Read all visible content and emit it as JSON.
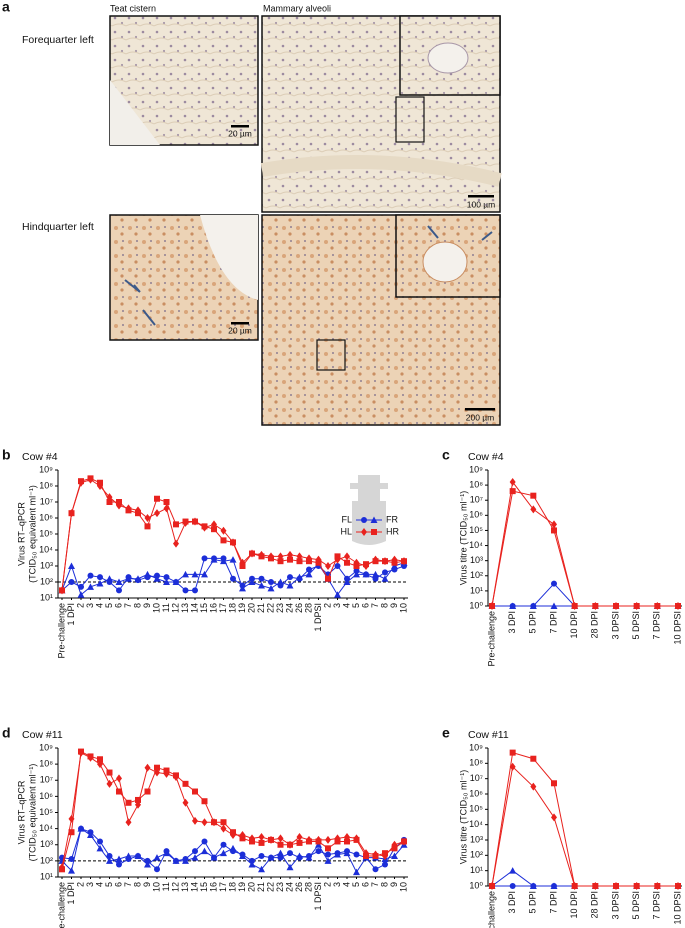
{
  "panel_a": {
    "letter": "a",
    "col1": "Teat cistern",
    "col2": "Mammary alveoli",
    "row1": "Forequarter left",
    "row2": "Hindquarter left",
    "scale_bars": [
      "20 µm",
      "100 µm",
      "20 µm",
      "200 µm"
    ]
  },
  "chart_data": [
    {
      "type": "line",
      "panel": "b",
      "title": "Cow #4",
      "ylabel": [
        "Virus RT–qPCR",
        "(TCID₅₀ equivalent ml⁻¹)"
      ],
      "log_y": true,
      "legend": "upper right",
      "threshold": 100,
      "categories": [
        "Pre-challenge",
        "1 DPI",
        "2",
        "3",
        "4",
        "5",
        "6",
        "7",
        "8",
        "9",
        "10",
        "11",
        "12",
        "13",
        "14",
        "15",
        "16",
        "17",
        "18",
        "19",
        "20",
        "21",
        "22",
        "23",
        "24",
        "26",
        "28",
        "1 DPSI",
        "2",
        "3",
        "4",
        "5",
        "6",
        "7",
        "8",
        "9",
        "10"
      ],
      "ylim": [
        10,
        1000000000.0
      ],
      "yticks": [
        {
          "value": 10,
          "label": "10¹"
        },
        {
          "value": 100,
          "label": "10²"
        },
        {
          "value": 1000.0,
          "label": "10³"
        },
        {
          "value": 10000.0,
          "label": "10⁴"
        },
        {
          "value": 100000.0,
          "label": "10⁵"
        },
        {
          "value": 1000000.0,
          "label": "10⁶"
        },
        {
          "value": 10000000.0,
          "label": "10⁷"
        },
        {
          "value": 100000000.0,
          "label": "10⁸"
        },
        {
          "value": 1000000000.0,
          "label": "10⁹"
        }
      ],
      "series": [
        {
          "name": "FL",
          "color": "#1c2ed8",
          "marker": "circle",
          "values": [
            30.0,
            100.0,
            50.0,
            250.0,
            200.0,
            100.0,
            30.0,
            200.0,
            130.0,
            200.0,
            250.0,
            200.0,
            100.0,
            30.0,
            30.0,
            3000.0,
            3000.0,
            3000.0,
            160.0,
            60.0,
            160.0,
            160.0,
            100.0,
            60.0,
            200.0,
            160.0,
            600.0,
            1000.0,
            300.0,
            1000.0,
            160.0,
            500.0,
            300.0,
            160.0,
            400.0,
            600.0,
            1000.0
          ]
        },
        {
          "name": "FR",
          "color": "#1c2ed8",
          "marker": "triangle",
          "values": [
            30.0,
            1000.0,
            16.0,
            50.0,
            80.0,
            160.0,
            100.0,
            160.0,
            160.0,
            300.0,
            160.0,
            100.0,
            100.0,
            300.0,
            300.0,
            300.0,
            2500.0,
            2000.0,
            2500.0,
            40.0,
            100.0,
            60.0,
            40.0,
            100.0,
            60.0,
            200.0,
            300.0,
            1300.0,
            160.0,
            16.0,
            100.0,
            300.0,
            300.0,
            300.0,
            160.0,
            1000.0,
            1600.0
          ]
        },
        {
          "name": "HL",
          "color": "#e8221e",
          "marker": "diamond",
          "values": [
            30.0,
            2000000.0,
            160000000.0,
            250000000.0,
            100000000.0,
            20000000.0,
            6000000.0,
            4000000.0,
            3000000.0,
            1000000.0,
            2000000.0,
            4000000.0,
            25000.0,
            500000.0,
            600000.0,
            250000.0,
            400000.0,
            160000.0,
            30000.0,
            1600.0,
            6000.0,
            5000.0,
            4000.0,
            4000.0,
            5000.0,
            4000.0,
            3000.0,
            2500.0,
            1000.0,
            2500.0,
            4000.0,
            1600.0,
            1000.0,
            2500.0,
            2000.0,
            2500.0,
            2000.0
          ]
        },
        {
          "name": "HR",
          "color": "#e8221e",
          "marker": "square",
          "values": [
            30.0,
            2000000.0,
            200000000.0,
            300000000.0,
            160000000.0,
            10000000.0,
            10000000.0,
            3000000.0,
            2000000.0,
            300000.0,
            16000000.0,
            10000000.0,
            400000.0,
            600000.0,
            600000.0,
            300000.0,
            200000.0,
            40000.0,
            30000.0,
            1000.0,
            6000.0,
            4000.0,
            3000.0,
            2000.0,
            2500.0,
            2000.0,
            2000.0,
            1600.0,
            160.0,
            4000.0,
            1600.0,
            1000.0,
            1300.0,
            2000.0,
            2000.0,
            1600.0,
            2000.0
          ]
        }
      ]
    },
    {
      "type": "line",
      "panel": "c",
      "title": "Cow #4",
      "ylabel": [
        "Virus titre (TCID₅₀ ml⁻¹)"
      ],
      "log_y": true,
      "categories": [
        "Pre-challenge",
        "3 DPI",
        "5 DPI",
        "7 DPI",
        "10 DPI",
        "28 DPI",
        "3 DPSI",
        "5 DPSI",
        "7 DPSI",
        "10 DPSI"
      ],
      "ylim": [
        1,
        1000000000.0
      ],
      "yticks": [
        {
          "value": 1,
          "label": "10⁰"
        },
        {
          "value": 10,
          "label": "10¹"
        },
        {
          "value": 100,
          "label": "10²"
        },
        {
          "value": 1000.0,
          "label": "10³"
        },
        {
          "value": 10000.0,
          "label": "10⁴"
        },
        {
          "value": 100000.0,
          "label": "10⁵"
        },
        {
          "value": 1000000.0,
          "label": "10⁶"
        },
        {
          "value": 10000000.0,
          "label": "10⁷"
        },
        {
          "value": 100000000.0,
          "label": "10⁸"
        },
        {
          "value": 1000000000.0,
          "label": "10⁹"
        }
      ],
      "series": [
        {
          "color": "#1c2ed8",
          "marker": "circle",
          "values": [
            1,
            1,
            1,
            30.0,
            1,
            1,
            1,
            1,
            1,
            1
          ]
        },
        {
          "color": "#1c2ed8",
          "marker": "triangle",
          "values": [
            1,
            1,
            1,
            1,
            1,
            1,
            1,
            1,
            1,
            1
          ]
        },
        {
          "color": "#e8221e",
          "marker": "diamond",
          "values": [
            1,
            160000000.0,
            2500000.0,
            250000.0,
            1,
            1,
            1,
            1,
            1,
            1
          ]
        },
        {
          "color": "#e8221e",
          "marker": "square",
          "values": [
            1,
            40000000.0,
            20000000.0,
            100000.0,
            1,
            1,
            1,
            1,
            1,
            1
          ]
        }
      ]
    },
    {
      "type": "line",
      "panel": "d",
      "title": "Cow #11",
      "ylabel": [
        "Virus RT–qPCR",
        "(TCID₅₀ equivalent ml⁻¹)"
      ],
      "log_y": true,
      "threshold": 100,
      "categories": [
        "Pre-challenge",
        "1 DPI",
        "2",
        "3",
        "4",
        "5",
        "6",
        "7",
        "8",
        "9",
        "10",
        "11",
        "12",
        "13",
        "14",
        "15",
        "16",
        "17",
        "18",
        "19",
        "20",
        "21",
        "22",
        "23",
        "24",
        "26",
        "28",
        "1 DPSI",
        "2",
        "3",
        "4",
        "5",
        "6",
        "7",
        "8",
        "9",
        "10"
      ],
      "ylim": [
        10,
        1000000000.0
      ],
      "yticks": [
        {
          "value": 10,
          "label": "10¹"
        },
        {
          "value": 100,
          "label": "10²"
        },
        {
          "value": 1000.0,
          "label": "10³"
        },
        {
          "value": 10000.0,
          "label": "10⁴"
        },
        {
          "value": 100000.0,
          "label": "10⁵"
        },
        {
          "value": 1000000.0,
          "label": "10⁶"
        },
        {
          "value": 10000000.0,
          "label": "10⁷"
        },
        {
          "value": 100000000.0,
          "label": "10⁸"
        },
        {
          "value": 1000000000.0,
          "label": "10⁹"
        }
      ],
      "series": [
        {
          "color": "#1c2ed8",
          "marker": "circle",
          "values": [
            160.0,
            130.0,
            10000.0,
            6000.0,
            1600.0,
            200.0,
            60.0,
            130.0,
            200.0,
            100.0,
            30.0,
            400.0,
            100.0,
            130.0,
            400.0,
            1600.0,
            160.0,
            1000.0,
            400.0,
            250.0,
            100.0,
            200.0,
            160.0,
            160.0,
            300.0,
            160.0,
            200.0,
            400.0,
            250.0,
            300.0,
            400.0,
            250.0,
            160.0,
            30.0,
            60.0,
            600.0,
            2000.0
          ]
        },
        {
          "color": "#1c2ed8",
          "marker": "triangle",
          "values": [
            100.0,
            25.0,
            10000.0,
            4000.0,
            600.0,
            100.0,
            130.0,
            200.0,
            200.0,
            60.0,
            160.0,
            300.0,
            100.0,
            100.0,
            160.0,
            400.0,
            160.0,
            300.0,
            600.0,
            200.0,
            60.0,
            30.0,
            160.0,
            300.0,
            40.0,
            200.0,
            160.0,
            1000.0,
            100.0,
            250.0,
            300.0,
            20.0,
            160.0,
            160.0,
            130.0,
            200.0,
            1000.0
          ]
        },
        {
          "color": "#e8221e",
          "marker": "diamond",
          "values": [
            40.0,
            40000.0,
            500000000.0,
            250000000.0,
            100000000.0,
            6000000.0,
            13000000.0,
            25000.0,
            300000.0,
            60000000.0,
            30000000.0,
            25000000.0,
            16000000.0,
            400000.0,
            30000.0,
            25000.0,
            25000.0,
            10000.0,
            4000.0,
            4000.0,
            2500.0,
            3000.0,
            2000.0,
            2500.0,
            1000.0,
            3000.0,
            2000.0,
            2000.0,
            2000.0,
            2500.0,
            3000.0,
            2500.0,
            300.0,
            250.0,
            200.0,
            1000.0,
            1600.0
          ]
        },
        {
          "color": "#e8221e",
          "marker": "square",
          "values": [
            30.0,
            6000.0,
            600000000.0,
            300000000.0,
            200000000.0,
            30000000.0,
            2000000.0,
            400000.0,
            600000.0,
            2000000.0,
            60000000.0,
            40000000.0,
            20000000.0,
            6000000.0,
            2000000.0,
            500000.0,
            25000.0,
            25000.0,
            6000.0,
            2500.0,
            1600.0,
            1300.0,
            2000.0,
            1000.0,
            1000.0,
            1300.0,
            1600.0,
            1600.0,
            600.0,
            1600.0,
            1600.0,
            2000.0,
            200.0,
            200.0,
            300.0,
            600.0,
            1600.0
          ]
        }
      ]
    },
    {
      "type": "line",
      "panel": "e",
      "title": "Cow #11",
      "ylabel": [
        "Virus titre (TCID₅₀ ml⁻¹)"
      ],
      "log_y": true,
      "categories": [
        "Pre-challenge",
        "3 DPI",
        "5 DPI",
        "7 DPI",
        "10 DPI",
        "28 DPI",
        "3 DPSI",
        "5 DPSI",
        "7 DPSI",
        "10 DPSI"
      ],
      "ylim": [
        1,
        1000000000.0
      ],
      "yticks": [
        {
          "value": 1,
          "label": "10⁰"
        },
        {
          "value": 10,
          "label": "10¹"
        },
        {
          "value": 100,
          "label": "10²"
        },
        {
          "value": 1000.0,
          "label": "10³"
        },
        {
          "value": 10000.0,
          "label": "10⁴"
        },
        {
          "value": 100000.0,
          "label": "10⁵"
        },
        {
          "value": 1000000.0,
          "label": "10⁶"
        },
        {
          "value": 10000000.0,
          "label": "10⁷"
        },
        {
          "value": 100000000.0,
          "label": "10⁸"
        },
        {
          "value": 1000000000.0,
          "label": "10⁹"
        }
      ],
      "series": [
        {
          "color": "#1c2ed8",
          "marker": "circle",
          "values": [
            1,
            1,
            1,
            1,
            1,
            1,
            1,
            1,
            1,
            1
          ]
        },
        {
          "color": "#1c2ed8",
          "marker": "triangle",
          "values": [
            1,
            10.0,
            1,
            1,
            1,
            1,
            1,
            1,
            1,
            1
          ]
        },
        {
          "color": "#e8221e",
          "marker": "diamond",
          "values": [
            1,
            60000000.0,
            3000000.0,
            30000.0,
            1,
            1,
            1,
            1,
            1,
            1
          ]
        },
        {
          "color": "#e8221e",
          "marker": "square",
          "values": [
            1,
            500000000.0,
            200000000.0,
            5000000.0,
            1,
            1,
            1,
            1,
            1,
            1
          ]
        }
      ]
    }
  ]
}
